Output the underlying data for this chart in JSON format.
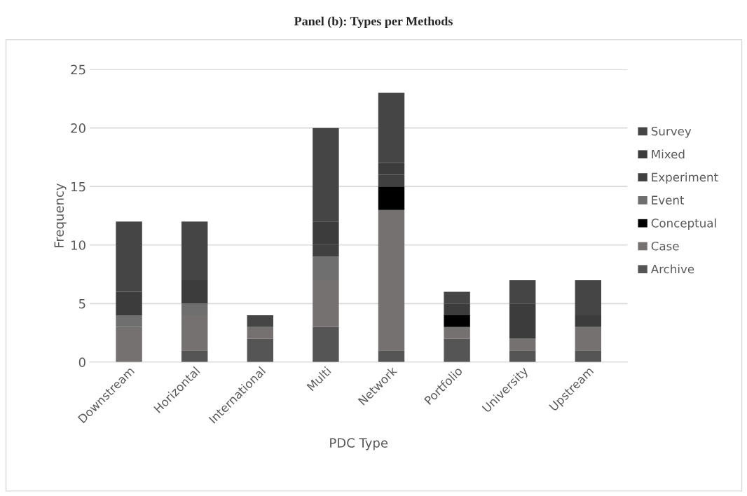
{
  "chart_data": {
    "type": "bar",
    "title": "Panel (b): Types per Methods",
    "xlabel": "PDC Type",
    "ylabel": "Frequency",
    "categories": [
      "Downstream",
      "Horizontal",
      "International",
      "Multi",
      "Network",
      "Portfolio",
      "University",
      "Upstream"
    ],
    "stacked": true,
    "ylim": [
      0,
      25
    ],
    "yticks": [
      0,
      5,
      10,
      15,
      20,
      25
    ],
    "grid": "y",
    "legend": "right",
    "series": [
      {
        "name": "Archive",
        "color": "#555555",
        "values": [
          0,
          1,
          2,
          3,
          1,
          2,
          1,
          1
        ]
      },
      {
        "name": "Case",
        "color": "#767171",
        "values": [
          3,
          3,
          1,
          4,
          12,
          1,
          1,
          2
        ]
      },
      {
        "name": "Conceptual",
        "color": "#000000",
        "values": [
          0,
          0,
          0,
          0,
          2,
          1,
          0,
          0
        ]
      },
      {
        "name": "Event",
        "color": "#6f6f6f",
        "values": [
          1,
          1,
          0,
          2,
          0,
          0,
          0,
          0
        ]
      },
      {
        "name": "Experiment",
        "color": "#404040",
        "values": [
          0,
          0,
          0,
          1,
          1,
          0,
          0,
          0
        ]
      },
      {
        "name": "Mixed",
        "color": "#3c3c3c",
        "values": [
          2,
          2,
          0,
          2,
          1,
          1,
          3,
          1
        ]
      },
      {
        "name": "Survey",
        "color": "#454545",
        "values": [
          6,
          5,
          1,
          8,
          6,
          1,
          2,
          3
        ]
      }
    ]
  }
}
